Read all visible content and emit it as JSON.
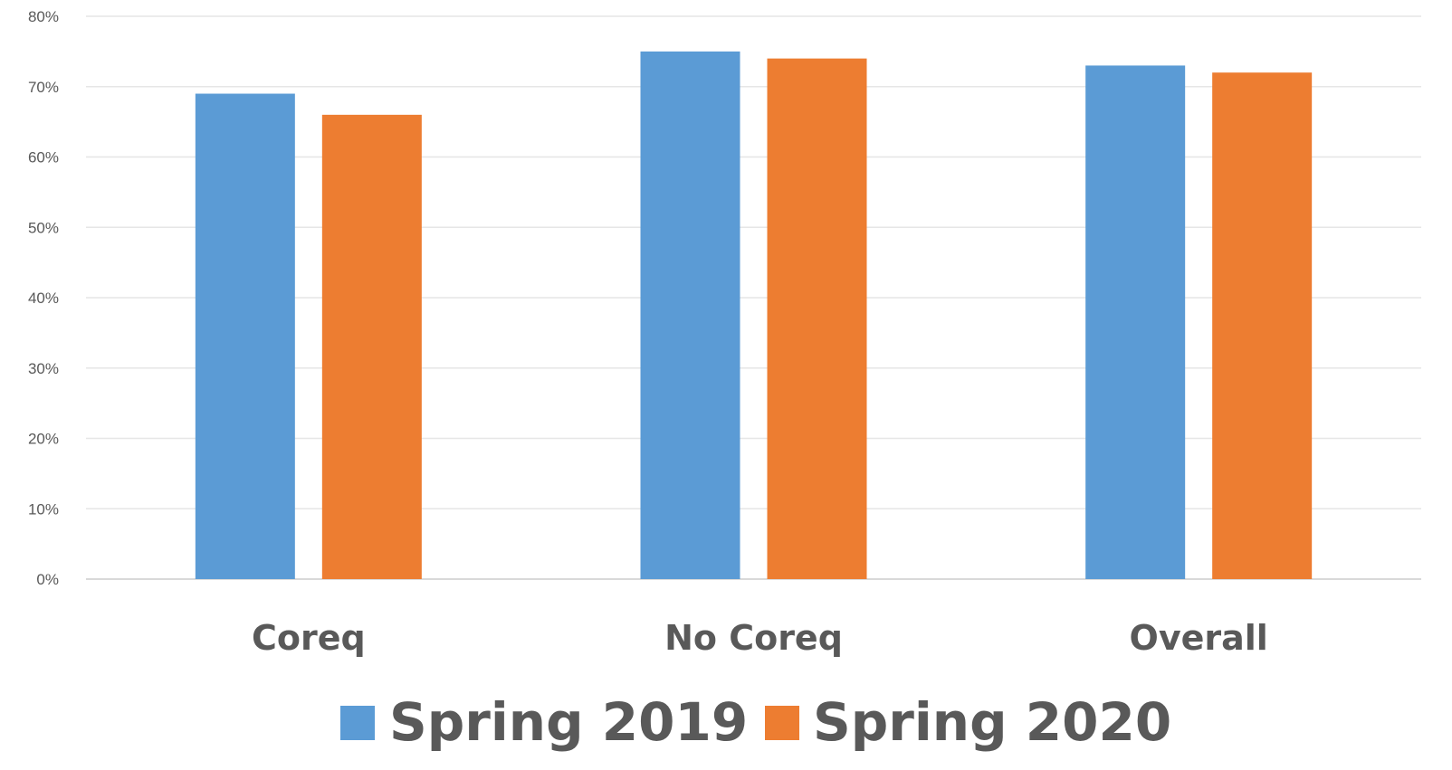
{
  "chart_data": {
    "type": "bar",
    "title": "",
    "xlabel": "",
    "ylabel": "",
    "categories": [
      "Coreq",
      "No Coreq",
      "Overall"
    ],
    "series": [
      {
        "name": "Spring 2019",
        "color": "#5b9bd5",
        "values": [
          69,
          75,
          73
        ]
      },
      {
        "name": "Spring 2020",
        "color": "#ed7d31",
        "values": [
          66,
          74,
          72
        ]
      }
    ],
    "ylim": [
      0,
      80
    ],
    "y_ticks": [
      0,
      10,
      20,
      30,
      40,
      50,
      60,
      70,
      80
    ],
    "y_tick_labels": [
      "0%",
      "10%",
      "20%",
      "30%",
      "40%",
      "50%",
      "60%",
      "70%",
      "80%"
    ],
    "grid": true,
    "legend_position": "bottom"
  }
}
